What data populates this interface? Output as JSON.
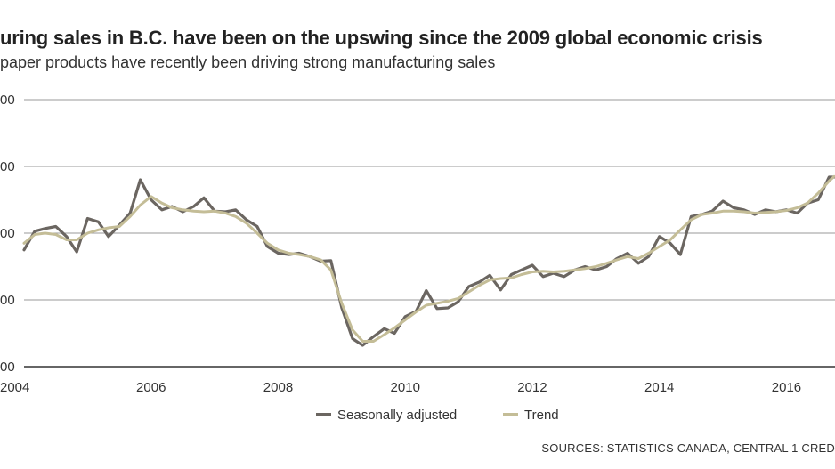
{
  "chart_data": {
    "type": "line",
    "title": "uring sales in B.C. have been on the upswing since the 2009 global economic crisis",
    "subtitle": "paper products have recently been driving strong manufacturing sales",
    "source": "SOURCES: STATISTICS CANADA, CENTRAL 1 CRED",
    "xlabel": "",
    "ylabel": "",
    "xlim": [
      2004.0,
      2016.75
    ],
    "ylim": [
      0,
      4
    ],
    "y_tick_labels": [
      "00",
      "00",
      "00",
      "00",
      "00"
    ],
    "x_ticks": [
      {
        "value": 2004,
        "label": "2004"
      },
      {
        "value": 2006,
        "label": "2006"
      },
      {
        "value": 2008,
        "label": "2008"
      },
      {
        "value": 2010,
        "label": "2010"
      },
      {
        "value": 2012,
        "label": "2012"
      },
      {
        "value": 2014,
        "label": "2014"
      },
      {
        "value": 2016,
        "label": "2016"
      }
    ],
    "grid": true,
    "legend_position": "bottom-center",
    "series": [
      {
        "name": "Seasonally adjusted",
        "color": "#6b6661",
        "x": [
          2004.0,
          2004.17,
          2004.33,
          2004.5,
          2004.67,
          2004.83,
          2005.0,
          2005.17,
          2005.33,
          2005.5,
          2005.67,
          2005.83,
          2006.0,
          2006.17,
          2006.33,
          2006.5,
          2006.67,
          2006.83,
          2007.0,
          2007.17,
          2007.33,
          2007.5,
          2007.67,
          2007.83,
          2008.0,
          2008.17,
          2008.33,
          2008.5,
          2008.67,
          2008.83,
          2009.0,
          2009.17,
          2009.33,
          2009.5,
          2009.67,
          2009.83,
          2010.0,
          2010.17,
          2010.33,
          2010.5,
          2010.67,
          2010.83,
          2011.0,
          2011.17,
          2011.33,
          2011.5,
          2011.67,
          2011.83,
          2012.0,
          2012.17,
          2012.33,
          2012.5,
          2012.67,
          2012.83,
          2013.0,
          2013.17,
          2013.33,
          2013.5,
          2013.67,
          2013.83,
          2014.0,
          2014.17,
          2014.33,
          2014.5,
          2014.67,
          2014.83,
          2015.0,
          2015.17,
          2015.33,
          2015.5,
          2015.67,
          2015.83,
          2016.0,
          2016.17,
          2016.33,
          2016.5,
          2016.67,
          2016.75
        ],
        "values": [
          1.75,
          2.03,
          2.07,
          2.1,
          1.95,
          1.72,
          2.22,
          2.17,
          1.95,
          2.12,
          2.3,
          2.8,
          2.5,
          2.35,
          2.4,
          2.32,
          2.4,
          2.53,
          2.33,
          2.32,
          2.35,
          2.2,
          2.1,
          1.8,
          1.7,
          1.68,
          1.7,
          1.65,
          1.58,
          1.59,
          0.88,
          0.42,
          0.32,
          0.45,
          0.57,
          0.5,
          0.75,
          0.83,
          1.14,
          0.87,
          0.88,
          0.97,
          1.2,
          1.27,
          1.37,
          1.15,
          1.38,
          1.45,
          1.52,
          1.35,
          1.4,
          1.35,
          1.45,
          1.5,
          1.45,
          1.5,
          1.62,
          1.7,
          1.55,
          1.65,
          1.95,
          1.85,
          1.68,
          2.25,
          2.28,
          2.33,
          2.48,
          2.38,
          2.35,
          2.28,
          2.35,
          2.32,
          2.35,
          2.3,
          2.45,
          2.5,
          2.84,
          2.84
        ]
      },
      {
        "name": "Trend",
        "color": "#c4bd97",
        "x": [
          2004.0,
          2004.17,
          2004.33,
          2004.5,
          2004.67,
          2004.83,
          2005.0,
          2005.17,
          2005.33,
          2005.5,
          2005.67,
          2005.83,
          2006.0,
          2006.17,
          2006.33,
          2006.5,
          2006.67,
          2006.83,
          2007.0,
          2007.17,
          2007.33,
          2007.5,
          2007.67,
          2007.83,
          2008.0,
          2008.17,
          2008.33,
          2008.5,
          2008.67,
          2008.83,
          2009.0,
          2009.17,
          2009.33,
          2009.5,
          2009.67,
          2009.83,
          2010.0,
          2010.17,
          2010.33,
          2010.5,
          2010.67,
          2010.83,
          2011.0,
          2011.17,
          2011.33,
          2011.5,
          2011.67,
          2011.83,
          2012.0,
          2012.17,
          2012.33,
          2012.5,
          2012.67,
          2012.83,
          2013.0,
          2013.17,
          2013.33,
          2013.5,
          2013.67,
          2013.83,
          2014.0,
          2014.17,
          2014.33,
          2014.5,
          2014.67,
          2014.83,
          2015.0,
          2015.17,
          2015.33,
          2015.5,
          2015.67,
          2015.83,
          2016.0,
          2016.17,
          2016.33,
          2016.5,
          2016.67,
          2016.75
        ],
        "values": [
          1.85,
          1.98,
          2.0,
          1.98,
          1.9,
          1.9,
          2.0,
          2.05,
          2.08,
          2.1,
          2.25,
          2.42,
          2.55,
          2.45,
          2.38,
          2.35,
          2.33,
          2.32,
          2.33,
          2.3,
          2.25,
          2.15,
          2.0,
          1.85,
          1.75,
          1.7,
          1.68,
          1.65,
          1.6,
          1.45,
          0.95,
          0.55,
          0.38,
          0.38,
          0.48,
          0.58,
          0.7,
          0.82,
          0.92,
          0.95,
          0.98,
          1.02,
          1.12,
          1.22,
          1.3,
          1.32,
          1.33,
          1.38,
          1.42,
          1.43,
          1.42,
          1.43,
          1.45,
          1.47,
          1.5,
          1.55,
          1.6,
          1.65,
          1.62,
          1.7,
          1.8,
          1.9,
          2.05,
          2.2,
          2.28,
          2.3,
          2.33,
          2.33,
          2.32,
          2.3,
          2.31,
          2.32,
          2.34,
          2.38,
          2.45,
          2.6,
          2.78,
          2.85
        ]
      }
    ]
  }
}
